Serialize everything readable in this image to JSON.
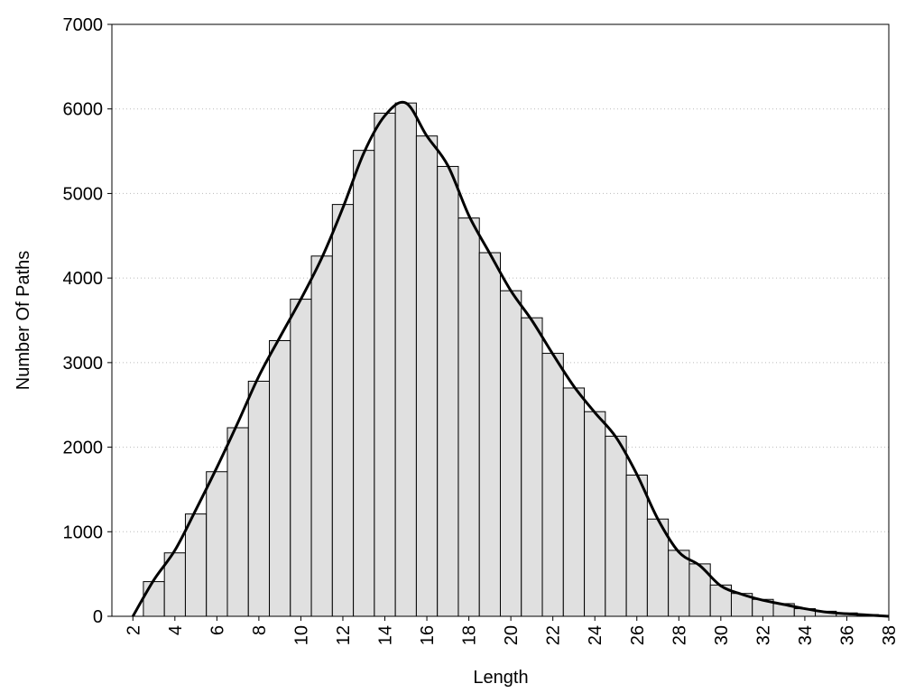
{
  "chart_data": {
    "type": "histogram",
    "xlabel": "Length",
    "ylabel": "Number Of Paths",
    "bins": [
      2.5,
      3.5,
      4.5,
      5.5,
      6.5,
      7.5,
      8.5,
      9.5,
      10.5,
      11.5,
      12.5,
      13.5,
      14.5,
      15.5,
      16.5,
      17.5,
      18.5,
      19.5,
      20.5,
      21.5,
      22.5,
      23.5,
      24.5,
      25.5,
      26.5,
      27.5,
      28.5,
      29.5,
      30.5,
      31.5,
      32.5,
      33.5,
      34.5,
      35.5,
      36.5,
      37.5
    ],
    "values": [
      410,
      750,
      1210,
      1710,
      2230,
      2780,
      3260,
      3750,
      4260,
      4870,
      5510,
      5950,
      6070,
      5680,
      5320,
      4710,
      4300,
      3850,
      3530,
      3110,
      2700,
      2420,
      2130,
      1670,
      1150,
      780,
      620,
      370,
      270,
      200,
      150,
      90,
      60,
      40,
      20
    ],
    "color": "#e0e0e0",
    "edge_color": "#000000",
    "line": {
      "x": [
        2,
        3,
        4,
        5,
        6,
        7,
        8,
        9,
        10,
        11,
        12,
        13,
        14,
        15,
        16,
        17,
        18,
        19,
        20,
        21,
        22,
        23,
        24,
        25,
        26,
        27,
        28,
        29,
        30,
        31,
        32,
        33,
        34,
        35,
        36,
        37,
        38
      ],
      "values": [
        0,
        430,
        780,
        1260,
        1760,
        2290,
        2840,
        3300,
        3750,
        4240,
        4830,
        5480,
        5920,
        6070,
        5680,
        5330,
        4740,
        4290,
        3850,
        3500,
        3100,
        2720,
        2410,
        2120,
        1680,
        1150,
        760,
        600,
        360,
        260,
        190,
        140,
        90,
        50,
        30,
        15,
        0
      ],
      "color": "#000000"
    },
    "xlim": [
      1,
      38
    ],
    "ylim": [
      0,
      7000
    ],
    "xticks": [
      2,
      4,
      6,
      8,
      10,
      12,
      14,
      16,
      18,
      20,
      22,
      24,
      26,
      28,
      30,
      32,
      34,
      36,
      38
    ],
    "yticks": [
      0,
      1000,
      2000,
      3000,
      4000,
      5000,
      6000,
      7000
    ],
    "grid": true
  }
}
